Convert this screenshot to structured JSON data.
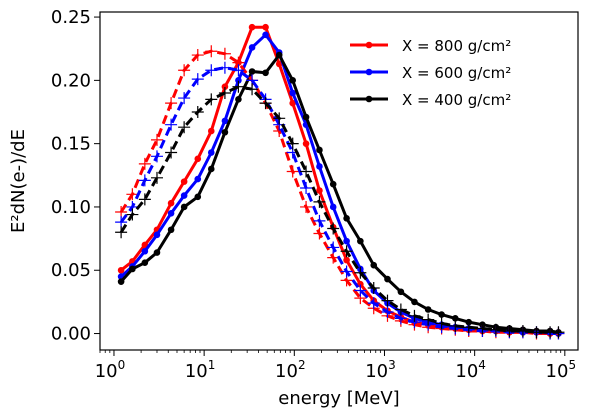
{
  "chart_data": {
    "type": "line",
    "title": "",
    "xlabel": "energy [MeV]",
    "ylabel": "E²dN(e-)/dE",
    "xscale": "log",
    "xlim": [
      0.7,
      140000
    ],
    "ylim": [
      -0.013,
      0.254
    ],
    "xticks": [
      {
        "value": 1,
        "label": "10",
        "exp": "0"
      },
      {
        "value": 10,
        "label": "10",
        "exp": "1"
      },
      {
        "value": 100,
        "label": "10",
        "exp": "2"
      },
      {
        "value": 1000,
        "label": "10",
        "exp": "3"
      },
      {
        "value": 10000,
        "label": "10",
        "exp": "4"
      },
      {
        "value": 100000,
        "label": "10",
        "exp": "5"
      }
    ],
    "yticks": [
      {
        "value": 0.0,
        "label": "0.00"
      },
      {
        "value": 0.05,
        "label": "0.05"
      },
      {
        "value": 0.1,
        "label": "0.10"
      },
      {
        "value": 0.15,
        "label": "0.15"
      },
      {
        "value": 0.2,
        "label": "0.20"
      },
      {
        "value": 0.25,
        "label": "0.25"
      }
    ],
    "grid": false,
    "legend_position": "top-right",
    "legend": [
      {
        "label": "X = 800 g/cm²",
        "color": "#ff0000"
      },
      {
        "label": "X = 600 g/cm²",
        "color": "#0000ff"
      },
      {
        "label": "X = 400 g/cm²",
        "color": "#000000"
      }
    ],
    "x": [
      1.2,
      1.6,
      2.2,
      3.0,
      4.3,
      6.0,
      8.5,
      12,
      17,
      24,
      34,
      48,
      68,
      96,
      135,
      190,
      270,
      380,
      540,
      760,
      1080,
      1520,
      2150,
      3050,
      4300,
      6100,
      8600,
      12200,
      17200,
      24300,
      34300,
      48500,
      68600,
      85000
    ],
    "series": [
      {
        "name": "X = 800 g/cm²",
        "style": "solid",
        "marker": "dot",
        "color": "#ff0000",
        "values": [
          0.05,
          0.057,
          0.07,
          0.082,
          0.103,
          0.12,
          0.138,
          0.16,
          0.195,
          0.214,
          0.242,
          0.242,
          0.213,
          0.182,
          0.15,
          0.113,
          0.084,
          0.058,
          0.039,
          0.026,
          0.018,
          0.013,
          0.009,
          0.007,
          0.005,
          0.004,
          0.003,
          0.002,
          0.002,
          0.001,
          0.001,
          0.001,
          0.0,
          0.0
        ]
      },
      {
        "name": "X = 600 g/cm²",
        "style": "solid",
        "marker": "dot",
        "color": "#0000ff",
        "values": [
          0.045,
          0.053,
          0.065,
          0.078,
          0.095,
          0.109,
          0.122,
          0.143,
          0.168,
          0.2,
          0.226,
          0.236,
          0.222,
          0.19,
          0.165,
          0.132,
          0.1,
          0.073,
          0.051,
          0.034,
          0.024,
          0.017,
          0.012,
          0.009,
          0.007,
          0.005,
          0.004,
          0.003,
          0.002,
          0.002,
          0.001,
          0.001,
          0.001,
          0.0
        ]
      },
      {
        "name": "X = 400 g/cm²",
        "style": "solid",
        "marker": "dot",
        "color": "#000000",
        "values": [
          0.041,
          0.051,
          0.056,
          0.064,
          0.082,
          0.1,
          0.108,
          0.13,
          0.159,
          0.185,
          0.207,
          0.206,
          0.22,
          0.2,
          0.171,
          0.145,
          0.118,
          0.091,
          0.073,
          0.054,
          0.043,
          0.033,
          0.025,
          0.019,
          0.015,
          0.012,
          0.009,
          0.007,
          0.005,
          0.004,
          0.003,
          0.002,
          0.002,
          0.001
        ]
      },
      {
        "name": "",
        "style": "dashed",
        "marker": "plus",
        "color": "#ff0000",
        "values": [
          0.096,
          0.11,
          0.134,
          0.153,
          0.182,
          0.208,
          0.22,
          0.223,
          0.221,
          0.214,
          0.2,
          0.182,
          0.16,
          0.128,
          0.1,
          0.079,
          0.06,
          0.042,
          0.028,
          0.02,
          0.014,
          0.01,
          0.007,
          0.005,
          0.004,
          0.003,
          0.002,
          0.002,
          0.001,
          0.001,
          0.001,
          0.0,
          0.0,
          0.0
        ]
      },
      {
        "name": "",
        "style": "dashed",
        "marker": "plus",
        "color": "#0000ff",
        "values": [
          0.088,
          0.1,
          0.121,
          0.14,
          0.165,
          0.186,
          0.201,
          0.208,
          0.21,
          0.208,
          0.2,
          0.185,
          0.165,
          0.143,
          0.115,
          0.089,
          0.068,
          0.049,
          0.034,
          0.024,
          0.017,
          0.012,
          0.009,
          0.007,
          0.005,
          0.004,
          0.003,
          0.002,
          0.002,
          0.001,
          0.001,
          0.001,
          0.0,
          0.0
        ]
      },
      {
        "name": "",
        "style": "dashed",
        "marker": "plus",
        "color": "#000000",
        "values": [
          0.08,
          0.094,
          0.106,
          0.123,
          0.143,
          0.163,
          0.175,
          0.185,
          0.19,
          0.195,
          0.193,
          0.182,
          0.17,
          0.15,
          0.128,
          0.104,
          0.083,
          0.065,
          0.048,
          0.036,
          0.026,
          0.019,
          0.014,
          0.011,
          0.008,
          0.006,
          0.005,
          0.004,
          0.003,
          0.002,
          0.002,
          0.001,
          0.001,
          0.001
        ]
      }
    ]
  }
}
